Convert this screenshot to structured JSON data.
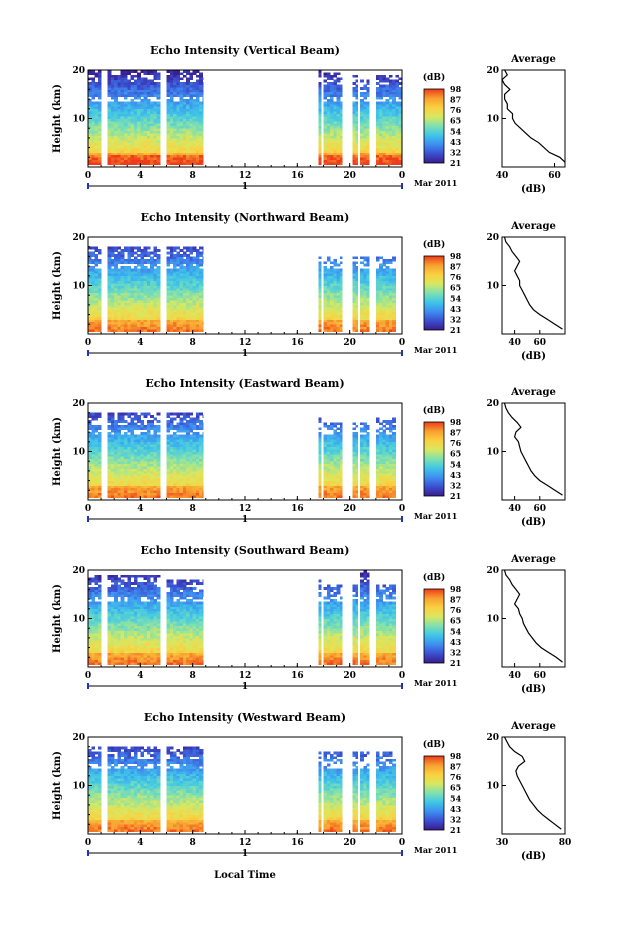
{
  "figure": {
    "xlabel": "Local Time",
    "date_label": "Mar 2011",
    "day_label": "1",
    "colorbar_unit": "(dB)",
    "colorbar_ticks": [
      "21",
      "32",
      "43",
      "54",
      "65",
      "76",
      "87",
      "98"
    ],
    "profile_title": "Average",
    "profile_xlabel": "(dB)",
    "ylabel": "Height (km)",
    "colormap": [
      "#3a1c8c",
      "#3b4fd0",
      "#3e8ef0",
      "#3fc6e8",
      "#7fe0b0",
      "#d8e860",
      "#fbd040",
      "#f7a030",
      "#ee3b1a"
    ]
  },
  "chart_data": [
    {
      "type": "heatmap",
      "title": "Echo Intensity (Vertical Beam)",
      "x_ticks": [
        "0",
        "4",
        "8",
        "12",
        "16",
        "20",
        "0"
      ],
      "xlim": [
        0,
        24
      ],
      "ylim": [
        0,
        20
      ],
      "y_ticks": [
        "20",
        "10"
      ],
      "data_segments": [
        [
          0,
          1
        ],
        [
          1.5,
          5.5
        ],
        [
          6,
          8.8
        ],
        [
          17.6,
          17.8
        ],
        [
          18,
          19.4
        ],
        [
          20.2,
          20.6
        ],
        [
          20.8,
          21.5
        ],
        [
          22,
          24
        ]
      ],
      "top_km": [
        20,
        20,
        20,
        20,
        19.5,
        19,
        18,
        19
      ],
      "profile": {
        "xlim": [
          40,
          64
        ],
        "x_ticks": [
          "40",
          "60"
        ],
        "y_ticks": [
          "20",
          "10"
        ],
        "height_km": [
          20,
          19,
          18,
          17,
          16,
          15,
          14,
          13,
          12,
          11,
          10,
          9,
          8,
          7,
          6,
          5,
          4,
          3,
          2,
          1
        ],
        "db": [
          41,
          42,
          40,
          41,
          43,
          41,
          41,
          42,
          42,
          44,
          44,
          45,
          47,
          49,
          51,
          54,
          56,
          58,
          62,
          64
        ]
      }
    },
    {
      "type": "heatmap",
      "title": "Echo Intensity (Northward Beam)",
      "x_ticks": [
        "0",
        "4",
        "8",
        "12",
        "16",
        "20",
        "0"
      ],
      "xlim": [
        0,
        24
      ],
      "ylim": [
        0,
        20
      ],
      "y_ticks": [
        "20",
        "10"
      ],
      "data_segments": [
        [
          0,
          1
        ],
        [
          1.5,
          5.5
        ],
        [
          6,
          8.8
        ],
        [
          17.6,
          17.8
        ],
        [
          18,
          19.4
        ],
        [
          20.2,
          20.6
        ],
        [
          20.8,
          21.5
        ],
        [
          22,
          23.5
        ]
      ],
      "top_km": [
        18,
        18,
        18,
        16,
        16,
        16,
        16,
        16
      ],
      "profile": {
        "xlim": [
          30,
          80
        ],
        "x_ticks": [
          "40",
          "60"
        ],
        "y_ticks": [
          "20",
          "10"
        ],
        "height_km": [
          20,
          19,
          18,
          17,
          16,
          15,
          14,
          13,
          12,
          11,
          10,
          9,
          8,
          7,
          6,
          5,
          4,
          3,
          2,
          1
        ],
        "db": [
          32,
          33,
          36,
          38,
          41,
          44,
          42,
          40,
          42,
          44,
          44,
          46,
          48,
          50,
          52,
          55,
          60,
          66,
          72,
          78
        ]
      }
    },
    {
      "type": "heatmap",
      "title": "Echo Intensity (Eastward Beam)",
      "x_ticks": [
        "0",
        "4",
        "8",
        "12",
        "16",
        "20",
        "0"
      ],
      "xlim": [
        0,
        24
      ],
      "ylim": [
        0,
        20
      ],
      "y_ticks": [
        "20",
        "10"
      ],
      "data_segments": [
        [
          0,
          1
        ],
        [
          1.5,
          5.5
        ],
        [
          6,
          8.8
        ],
        [
          17.6,
          17.8
        ],
        [
          18,
          19.4
        ],
        [
          20.2,
          20.6
        ],
        [
          20.8,
          21.5
        ],
        [
          22,
          23.5
        ]
      ],
      "top_km": [
        18,
        18,
        18,
        17,
        16,
        16,
        16,
        17
      ],
      "profile": {
        "xlim": [
          30,
          80
        ],
        "x_ticks": [
          "40",
          "60"
        ],
        "y_ticks": [
          "20",
          "10"
        ],
        "height_km": [
          20,
          19,
          18,
          17,
          16,
          15,
          14,
          13,
          12,
          11,
          10,
          9,
          8,
          7,
          6,
          5,
          4,
          3,
          2,
          1
        ],
        "db": [
          32,
          33,
          35,
          38,
          42,
          45,
          41,
          40,
          43,
          44,
          45,
          47,
          49,
          51,
          53,
          56,
          60,
          66,
          72,
          78
        ]
      }
    },
    {
      "type": "heatmap",
      "title": "Echo Intensity (Southward Beam)",
      "x_ticks": [
        "0",
        "4",
        "8",
        "12",
        "16",
        "20",
        "0"
      ],
      "xlim": [
        0,
        24
      ],
      "ylim": [
        0,
        20
      ],
      "y_ticks": [
        "20",
        "10"
      ],
      "data_segments": [
        [
          0,
          1
        ],
        [
          1.5,
          5.5
        ],
        [
          6,
          8.8
        ],
        [
          17.6,
          17.8
        ],
        [
          18,
          19.4
        ],
        [
          20.2,
          20.6
        ],
        [
          20.8,
          21.5
        ],
        [
          22,
          23.5
        ]
      ],
      "top_km": [
        19,
        19,
        18,
        18,
        17,
        17,
        20,
        17
      ],
      "profile": {
        "xlim": [
          30,
          80
        ],
        "x_ticks": [
          "40",
          "60"
        ],
        "y_ticks": [
          "20",
          "10"
        ],
        "height_km": [
          20,
          19,
          18,
          17,
          16,
          15,
          14,
          13,
          12,
          11,
          10,
          9,
          8,
          7,
          6,
          5,
          4,
          3,
          2,
          1
        ],
        "db": [
          32,
          33,
          36,
          38,
          41,
          44,
          42,
          40,
          43,
          44,
          46,
          47,
          49,
          51,
          54,
          57,
          61,
          67,
          73,
          78
        ]
      }
    },
    {
      "type": "heatmap",
      "title": "Echo Intensity (Westward Beam)",
      "x_ticks": [
        "0",
        "4",
        "8",
        "12",
        "16",
        "20",
        "0"
      ],
      "xlim": [
        0,
        24
      ],
      "ylim": [
        0,
        20
      ],
      "y_ticks": [
        "20",
        "10"
      ],
      "data_segments": [
        [
          0,
          1
        ],
        [
          1.5,
          5.5
        ],
        [
          6,
          8.8
        ],
        [
          17.6,
          17.8
        ],
        [
          18,
          19.4
        ],
        [
          20.2,
          20.6
        ],
        [
          20.8,
          21.5
        ],
        [
          22,
          23.5
        ]
      ],
      "top_km": [
        18,
        18,
        18,
        17,
        17,
        17,
        17,
        17
      ],
      "profile": {
        "xlim": [
          30,
          80
        ],
        "x_ticks": [
          "30",
          "80"
        ],
        "y_ticks": [
          "20",
          "10"
        ],
        "height_km": [
          20,
          19,
          18,
          17,
          16,
          15,
          14,
          13,
          12,
          11,
          10,
          9,
          8,
          7,
          6,
          5,
          4,
          3,
          2,
          1
        ],
        "db": [
          32,
          34,
          36,
          40,
          46,
          48,
          43,
          41,
          42,
          44,
          46,
          48,
          50,
          52,
          55,
          58,
          62,
          67,
          72,
          77
        ]
      }
    }
  ]
}
